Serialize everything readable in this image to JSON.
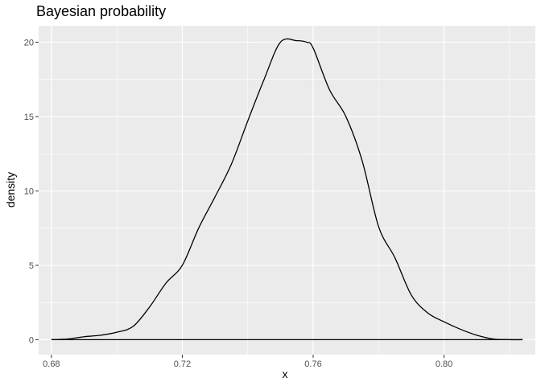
{
  "chart_data": {
    "type": "area",
    "title": "Bayesian probability",
    "xlabel": "x",
    "ylabel": "density",
    "xlim": [
      0.6761,
      0.8279
    ],
    "ylim": [
      -1.005,
      21.105
    ],
    "x_ticks": [
      0.68,
      0.72,
      0.76,
      0.8
    ],
    "x_tick_labels": [
      "0.68",
      "0.72",
      "0.76",
      "0.80"
    ],
    "y_ticks": [
      0,
      5,
      10,
      15,
      20
    ],
    "y_tick_labels": [
      "0",
      "5",
      "10",
      "15",
      "20"
    ],
    "grid": true,
    "legend": "none",
    "colors": {
      "panel": "#ebebeb",
      "grid": "#ffffff",
      "line": "#000000"
    },
    "series": [
      {
        "x": [
          0.68,
          0.685,
          0.69,
          0.695,
          0.7,
          0.705,
          0.71,
          0.715,
          0.72,
          0.725,
          0.73,
          0.735,
          0.74,
          0.745,
          0.75,
          0.755,
          0.758,
          0.76,
          0.765,
          0.77,
          0.775,
          0.78,
          0.785,
          0.79,
          0.795,
          0.8,
          0.805,
          0.81,
          0.815,
          0.82,
          0.824
        ],
        "y": [
          0.0,
          0.05,
          0.2,
          0.3,
          0.5,
          0.9,
          2.2,
          3.8,
          5.0,
          7.5,
          9.6,
          11.8,
          14.7,
          17.5,
          20.0,
          20.1,
          20.0,
          19.6,
          16.8,
          15.0,
          12.0,
          7.6,
          5.5,
          3.0,
          1.8,
          1.2,
          0.7,
          0.3,
          0.05,
          0.0,
          0.0
        ]
      }
    ]
  }
}
